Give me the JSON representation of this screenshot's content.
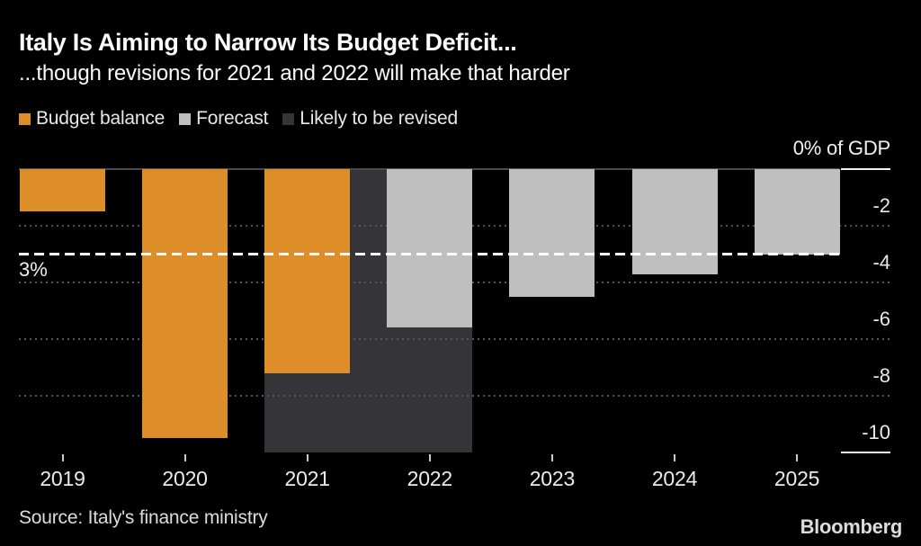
{
  "chart_data": {
    "type": "bar",
    "title": "Italy Is Aiming to Narrow Its Budget Deficit...",
    "subtitle": "...though revisions for 2021 and 2022 will make that harder",
    "unit_label": "0% of GDP",
    "categories": [
      "2019",
      "2020",
      "2021",
      "2022",
      "2023",
      "2024",
      "2025"
    ],
    "series": [
      {
        "name": "Budget balance",
        "color": "#DE8E28",
        "values": [
          -1.5,
          -9.5,
          -7.2,
          null,
          null,
          null,
          null
        ]
      },
      {
        "name": "Forecast",
        "color": "#BFBFBF",
        "values": [
          null,
          null,
          null,
          -5.6,
          -4.5,
          -3.7,
          -3.0
        ]
      },
      {
        "name": "Likely to be revised",
        "color": "#353539",
        "span_years": [
          "2021",
          "2022"
        ],
        "extends_to": -10
      }
    ],
    "y_axis": {
      "min": -10,
      "max": 0,
      "tick_interval": 2,
      "tick_labels": [
        "-2",
        "-4",
        "-6",
        "-8",
        "-10"
      ],
      "grid": "dotted horizontal"
    },
    "reference_line": {
      "value": -3,
      "label": "3%",
      "style": "dashed",
      "color": "#FFFFFF"
    },
    "legend_position": "top",
    "background_color": "#000000"
  },
  "footer": {
    "source": "Source: Italy's finance ministry",
    "brand": "Bloomberg"
  }
}
